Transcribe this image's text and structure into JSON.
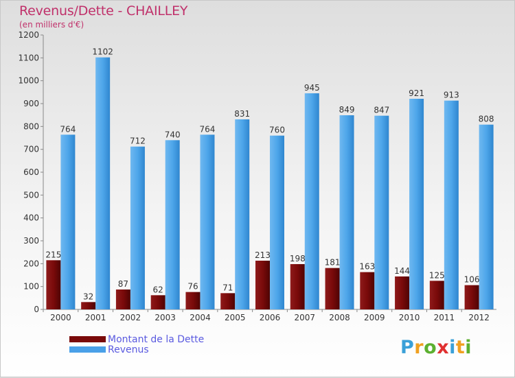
{
  "title": "Revenus/Dette - CHAILLEY",
  "subtitle": "(en milliers d'€)",
  "legend": {
    "debt_label": "Montant de la Dette",
    "revenue_label": "Revenus"
  },
  "brand": {
    "name": "Proxiti",
    "letters": [
      "P",
      "r",
      "o",
      "x",
      "i",
      "t",
      "i"
    ],
    "colors": [
      "#3aa0d8",
      "#f0a020",
      "#5cb030",
      "#e03030",
      "#3aa0d8",
      "#f0a020",
      "#5cb030"
    ]
  },
  "colors": {
    "debt": "#7a0a0a",
    "revenue": "#4aa0e8",
    "text": "#333333"
  },
  "chart_data": {
    "type": "bar",
    "categories": [
      "2000",
      "2001",
      "2002",
      "2003",
      "2004",
      "2005",
      "2006",
      "2007",
      "2008",
      "2009",
      "2010",
      "2011",
      "2012"
    ],
    "series": [
      {
        "name": "Montant de la Dette",
        "values": [
          215,
          32,
          87,
          62,
          76,
          71,
          213,
          198,
          181,
          163,
          144,
          125,
          106
        ]
      },
      {
        "name": "Revenus",
        "values": [
          764,
          1102,
          712,
          740,
          764,
          831,
          760,
          945,
          849,
          847,
          921,
          913,
          808
        ]
      }
    ],
    "ylim": [
      0,
      1200
    ],
    "yticks": [
      0,
      100,
      200,
      300,
      400,
      500,
      600,
      700,
      800,
      900,
      1000,
      1100,
      1200
    ],
    "grid": false,
    "legend_position": "bottom-left"
  }
}
